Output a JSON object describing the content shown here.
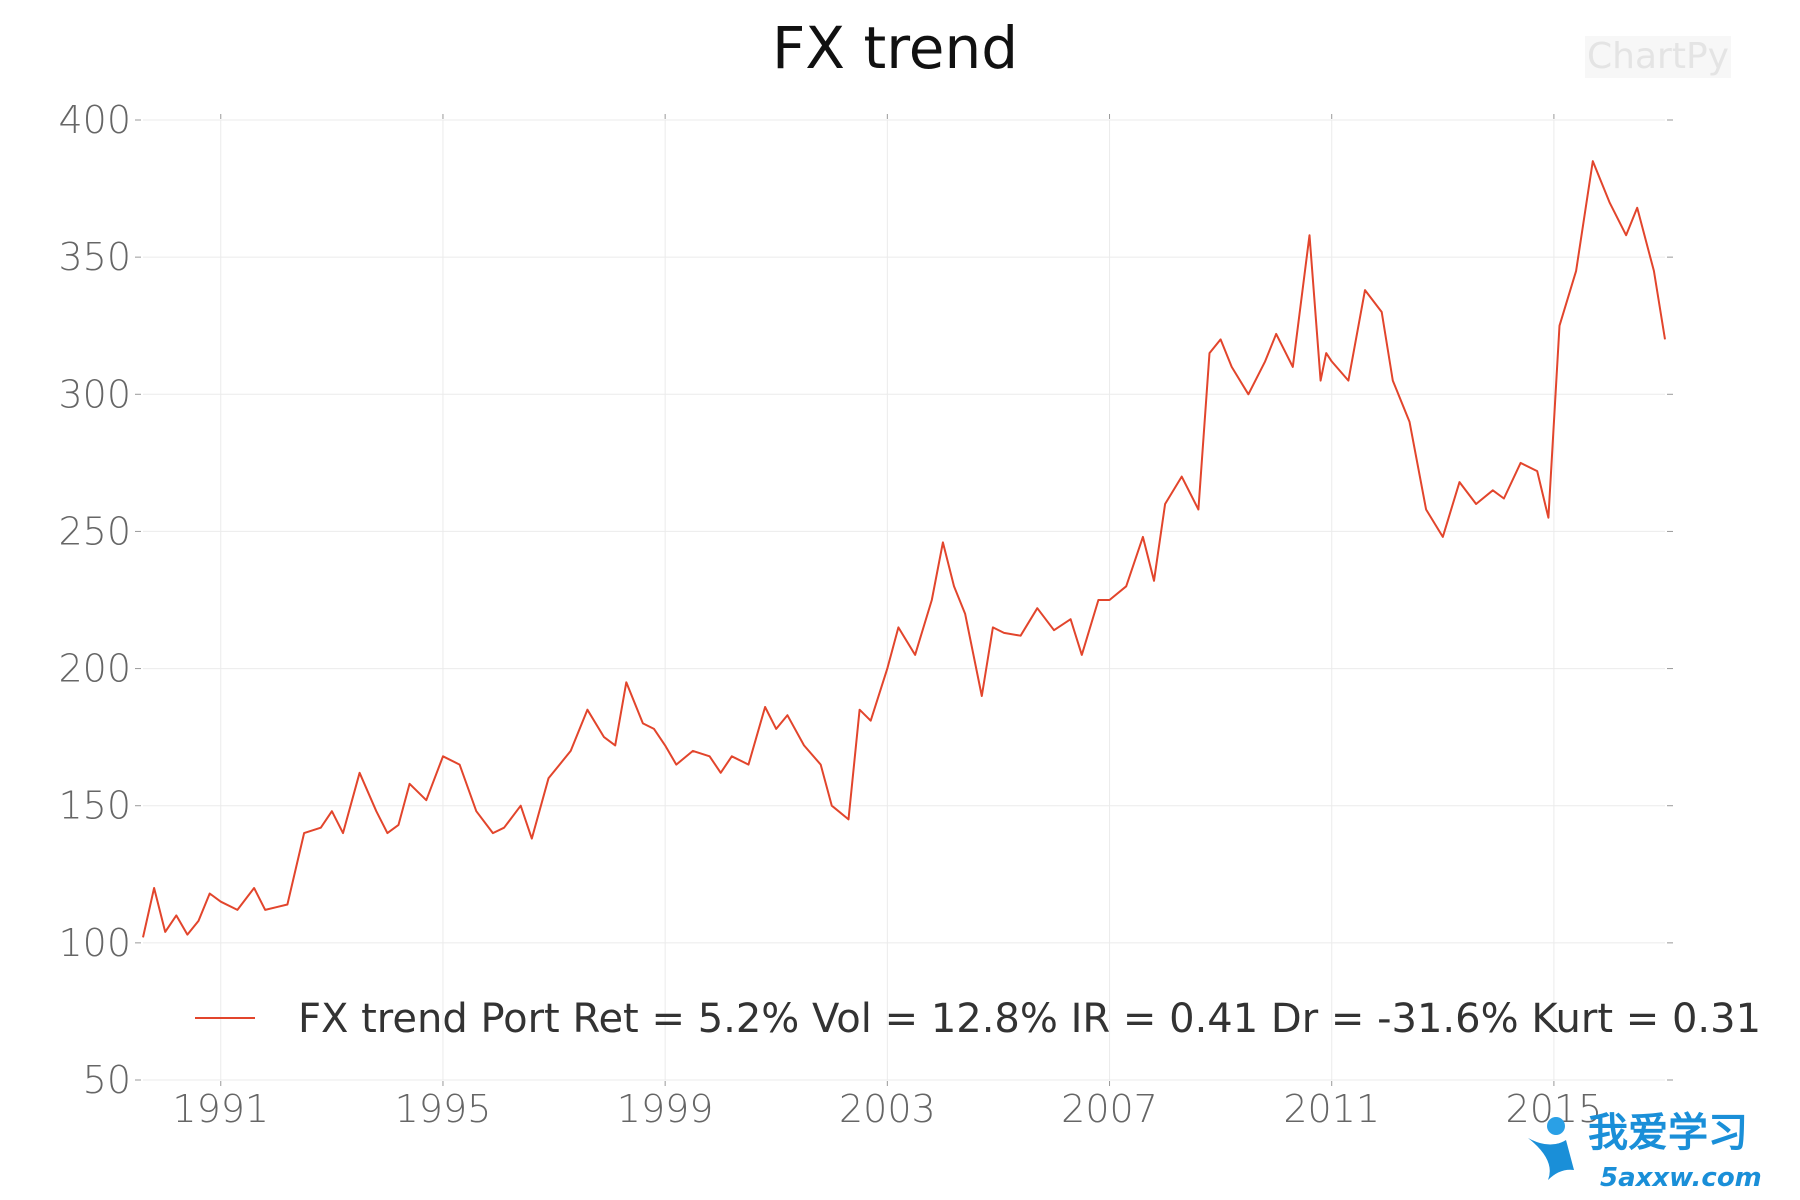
{
  "watermark": "ChartPy",
  "brand": {
    "main": "我爱学习",
    "sub": "5axxw.com"
  },
  "colors": {
    "series": "#e2452c",
    "grid": "#ebebeb",
    "tick": "#666666"
  },
  "chart_data": {
    "type": "line",
    "title": "FX trend",
    "xlabel": "",
    "ylabel": "",
    "xlim": [
      1989.6,
      2017.0
    ],
    "ylim": [
      50,
      400
    ],
    "xticks": [
      1991,
      1995,
      1999,
      2003,
      2007,
      2011,
      2015
    ],
    "yticks": [
      50,
      100,
      150,
      200,
      250,
      300,
      350,
      400
    ],
    "grid": true,
    "legend_position": "bottom",
    "series": [
      {
        "name": "FX trend Port Ret = 5.2% Vol = 12.8% IR = 0.41 Dr = -31.6% Kurt = 0.31",
        "x": [
          1989.6,
          1989.8,
          1990.0,
          1990.2,
          1990.4,
          1990.6,
          1990.8,
          1991.0,
          1991.3,
          1991.6,
          1991.8,
          1992.0,
          1992.2,
          1992.5,
          1992.8,
          1993.0,
          1993.2,
          1993.5,
          1993.8,
          1994.0,
          1994.2,
          1994.4,
          1994.7,
          1995.0,
          1995.3,
          1995.6,
          1995.9,
          1996.1,
          1996.4,
          1996.6,
          1996.9,
          1997.1,
          1997.3,
          1997.6,
          1997.9,
          1998.1,
          1998.3,
          1998.6,
          1998.8,
          1999.0,
          1999.2,
          1999.5,
          1999.8,
          2000.0,
          2000.2,
          2000.5,
          2000.8,
          2001.0,
          2001.2,
          2001.5,
          2001.8,
          2002.0,
          2002.3,
          2002.5,
          2002.7,
          2003.0,
          2003.2,
          2003.5,
          2003.8,
          2004.0,
          2004.2,
          2004.4,
          2004.7,
          2004.9,
          2005.1,
          2005.4,
          2005.7,
          2006.0,
          2006.3,
          2006.5,
          2006.8,
          2007.0,
          2007.3,
          2007.6,
          2007.8,
          2008.0,
          2008.3,
          2008.6,
          2008.8,
          2009.0,
          2009.2,
          2009.5,
          2009.8,
          2010.0,
          2010.3,
          2010.6,
          2010.8,
          2010.9,
          2011.0,
          2011.3,
          2011.6,
          2011.9,
          2012.1,
          2012.4,
          2012.7,
          2013.0,
          2013.3,
          2013.6,
          2013.9,
          2014.1,
          2014.4,
          2014.7,
          2014.9,
          2015.1,
          2015.4,
          2015.7,
          2016.0,
          2016.3,
          2016.5,
          2016.8,
          2017.0
        ],
        "y": [
          102,
          120,
          104,
          110,
          103,
          108,
          118,
          115,
          112,
          120,
          112,
          113,
          114,
          140,
          142,
          148,
          140,
          162,
          148,
          140,
          143,
          158,
          152,
          168,
          165,
          148,
          140,
          142,
          150,
          138,
          160,
          165,
          170,
          185,
          175,
          172,
          195,
          180,
          178,
          172,
          165,
          170,
          168,
          162,
          168,
          165,
          186,
          178,
          183,
          172,
          165,
          150,
          145,
          185,
          181,
          200,
          215,
          205,
          225,
          246,
          230,
          220,
          190,
          215,
          213,
          212,
          222,
          214,
          218,
          205,
          225,
          225,
          230,
          248,
          232,
          260,
          270,
          258,
          315,
          320,
          310,
          300,
          312,
          322,
          310,
          358,
          305,
          315,
          312,
          305,
          338,
          330,
          305,
          290,
          258,
          248,
          268,
          260,
          265,
          262,
          275,
          272,
          255,
          325,
          345,
          385,
          370,
          358,
          368,
          345,
          320
        ]
      }
    ]
  }
}
